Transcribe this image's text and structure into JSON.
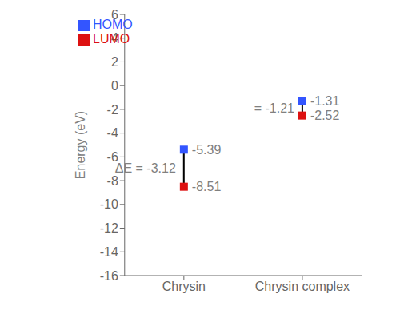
{
  "chart_data": {
    "type": "scatter",
    "categories": [
      "Chrysin",
      "Chrysin complex"
    ],
    "ylabel": "Energy (eV)",
    "ylim": [
      -16,
      6
    ],
    "yticks": [
      -16,
      -14,
      -12,
      -10,
      -8,
      -6,
      -4,
      -2,
      0,
      2,
      4,
      6
    ],
    "series": [
      {
        "name": "HOMO",
        "color": "#3355ff",
        "marker": "square",
        "values": [
          -5.39,
          -1.31
        ]
      },
      {
        "name": "LUMO",
        "color": "#dd1111",
        "marker": "square",
        "values": [
          -8.51,
          -2.52
        ]
      }
    ],
    "data_labels": true,
    "legend": "upper left",
    "annotations": [
      {
        "category": "Chrysin",
        "text": "ΔE = -3.12"
      },
      {
        "category": "Chrysin complex",
        "text": "= -1.21"
      }
    ]
  }
}
